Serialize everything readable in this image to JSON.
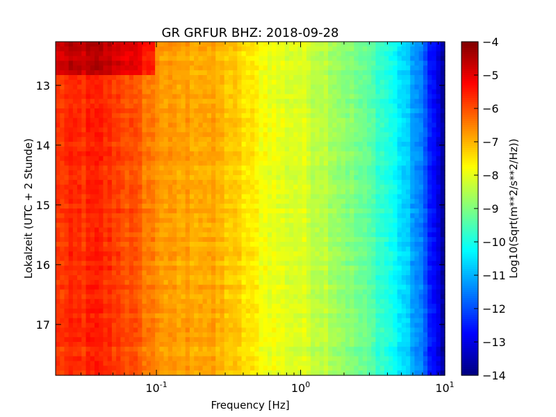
{
  "chart_data": {
    "type": "heatmap",
    "title": "GR GRFUR BHZ: 2018-09-28",
    "xlabel": "Frequency [Hz]",
    "ylabel": "Lokalzeit (UTC + 2 Stunde)",
    "x_scale": "log",
    "xlim": [
      0.02,
      10
    ],
    "x_ticks": [
      {
        "value": 0.1,
        "base": "10",
        "exp": "-1"
      },
      {
        "value": 1,
        "base": "10",
        "exp": "0"
      },
      {
        "value": 10,
        "base": "10",
        "exp": "1"
      }
    ],
    "ylim": [
      12.27,
      17.85
    ],
    "y_inverted": true,
    "y_ticks": [
      {
        "value": 13,
        "label": "13"
      },
      {
        "value": 14,
        "label": "14"
      },
      {
        "value": 15,
        "label": "15"
      },
      {
        "value": 16,
        "label": "16"
      },
      {
        "value": 17,
        "label": "17"
      }
    ],
    "colorbar": {
      "label": "Log10(Sqrt(m**2/s**2/Hz))",
      "colormap": "jet",
      "vmin": -14,
      "vmax": -4,
      "ticks": [
        {
          "value": -4,
          "label": "−4"
        },
        {
          "value": -5,
          "label": "−5"
        },
        {
          "value": -6,
          "label": "−6"
        },
        {
          "value": -7,
          "label": "−7"
        },
        {
          "value": -8,
          "label": "−8"
        },
        {
          "value": -9,
          "label": "−9"
        },
        {
          "value": -10,
          "label": "−10"
        },
        {
          "value": -11,
          "label": "−11"
        },
        {
          "value": -12,
          "label": "−12"
        },
        {
          "value": -13,
          "label": "−13"
        },
        {
          "value": -14,
          "label": "−14"
        }
      ]
    },
    "grid": false,
    "value_profile_by_frequency": {
      "frequency_hz": [
        0.02,
        0.04,
        0.06,
        0.08,
        0.1,
        0.13,
        0.2,
        0.3,
        0.5,
        0.7,
        1,
        1.5,
        2,
        3,
        4,
        5,
        6,
        7,
        8,
        9,
        10
      ],
      "log10_psd": [
        -5.8,
        -5.6,
        -5.9,
        -6.3,
        -6.6,
        -6.9,
        -6.8,
        -7.1,
        -7.7,
        -8.0,
        -8.1,
        -8.4,
        -8.8,
        -9.4,
        -9.9,
        -10.5,
        -11.1,
        -11.7,
        -12.4,
        -13.1,
        -13.8
      ]
    },
    "early_hours_offset": {
      "time_range": [
        12.27,
        12.85
      ],
      "frequency_max_hz": 0.1,
      "delta_log10_psd": 1.0
    }
  }
}
